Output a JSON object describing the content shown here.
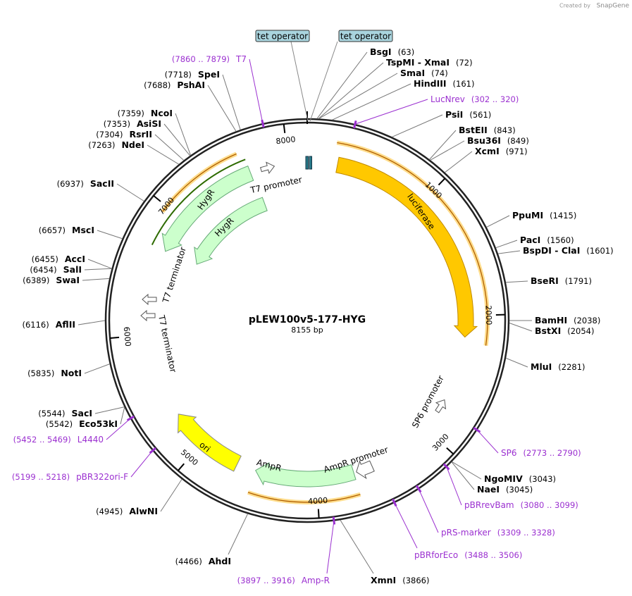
{
  "credit": "Created by",
  "brand": "SnapGene",
  "title": "pLEW100v5-177-HYG",
  "length": "8155 bp",
  "enzymes": [
    {
      "name": "BsgI",
      "site": "(63)"
    },
    {
      "name": "TspMI - XmaI",
      "site": "(72)"
    },
    {
      "name": "SmaI",
      "site": "(74)"
    },
    {
      "name": "HindIII",
      "site": "(161)"
    },
    {
      "name": "PsiI",
      "site": "(561)"
    },
    {
      "name": "BstEII",
      "site": "(843)"
    },
    {
      "name": "Bsu36I",
      "site": "(849)"
    },
    {
      "name": "XcmI",
      "site": "(971)"
    },
    {
      "name": "PpuMI",
      "site": "(1415)"
    },
    {
      "name": "PacI",
      "site": "(1560)"
    },
    {
      "name": "BspDI - ClaI",
      "site": "(1601)"
    },
    {
      "name": "BseRI",
      "site": "(1791)"
    },
    {
      "name": "BamHI",
      "site": "(2038)"
    },
    {
      "name": "BstXI",
      "site": "(2054)"
    },
    {
      "name": "MluI",
      "site": "(2281)"
    },
    {
      "name": "NgoMIV",
      "site": "(3043)"
    },
    {
      "name": "NaeI",
      "site": "(3045)"
    },
    {
      "name": "XmnI",
      "site": "(3866)"
    },
    {
      "name": "AhdI",
      "site": "(4466)"
    },
    {
      "name": "AlwNI",
      "site": "(4945)"
    },
    {
      "name": "Eco53kI",
      "site": "(5542)"
    },
    {
      "name": "SacI",
      "site": "(5544)"
    },
    {
      "name": "NotI",
      "site": "(5835)"
    },
    {
      "name": "AflII",
      "site": "(6116)"
    },
    {
      "name": "SwaI",
      "site": "(6389)"
    },
    {
      "name": "SalI",
      "site": "(6454)"
    },
    {
      "name": "AccI",
      "site": "(6455)"
    },
    {
      "name": "MscI",
      "site": "(6657)"
    },
    {
      "name": "SacII",
      "site": "(6937)"
    },
    {
      "name": "NdeI",
      "site": "(7263)"
    },
    {
      "name": "RsrII",
      "site": "(7304)"
    },
    {
      "name": "AsiSI",
      "site": "(7353)"
    },
    {
      "name": "NcoI",
      "site": "(7359)"
    },
    {
      "name": "PshAI",
      "site": "(7688)"
    },
    {
      "name": "SpeI",
      "site": "(7718)"
    }
  ],
  "primers": [
    {
      "name": "T7",
      "range": "(7860 .. 7879)"
    },
    {
      "name": "LucNrev",
      "range": "(302 .. 320)"
    },
    {
      "name": "SP6",
      "range": "(2773 .. 2790)"
    },
    {
      "name": "pBRrevBam",
      "range": "(3080 .. 3099)"
    },
    {
      "name": "pRS-marker",
      "range": "(3309 .. 3328)"
    },
    {
      "name": "pBRforEco",
      "range": "(3488 .. 3506)"
    },
    {
      "name": "Amp-R",
      "range": "(3897 .. 3916)"
    },
    {
      "name": "pBR322ori-F",
      "range": "(5199 .. 5218)"
    },
    {
      "name": "L4440",
      "range": "(5452 .. 5469)"
    }
  ],
  "features": [
    "tet operator",
    "tet operator",
    "luciferase",
    "HygR",
    "HygR",
    "T7 promoter",
    "T7 terminator",
    "T7 terminator",
    "SP6 promoter",
    "AmpR promoter",
    "AmpR",
    "ori"
  ],
  "ticks": [
    1000,
    2000,
    3000,
    4000,
    5000,
    6000,
    7000,
    8000
  ]
}
